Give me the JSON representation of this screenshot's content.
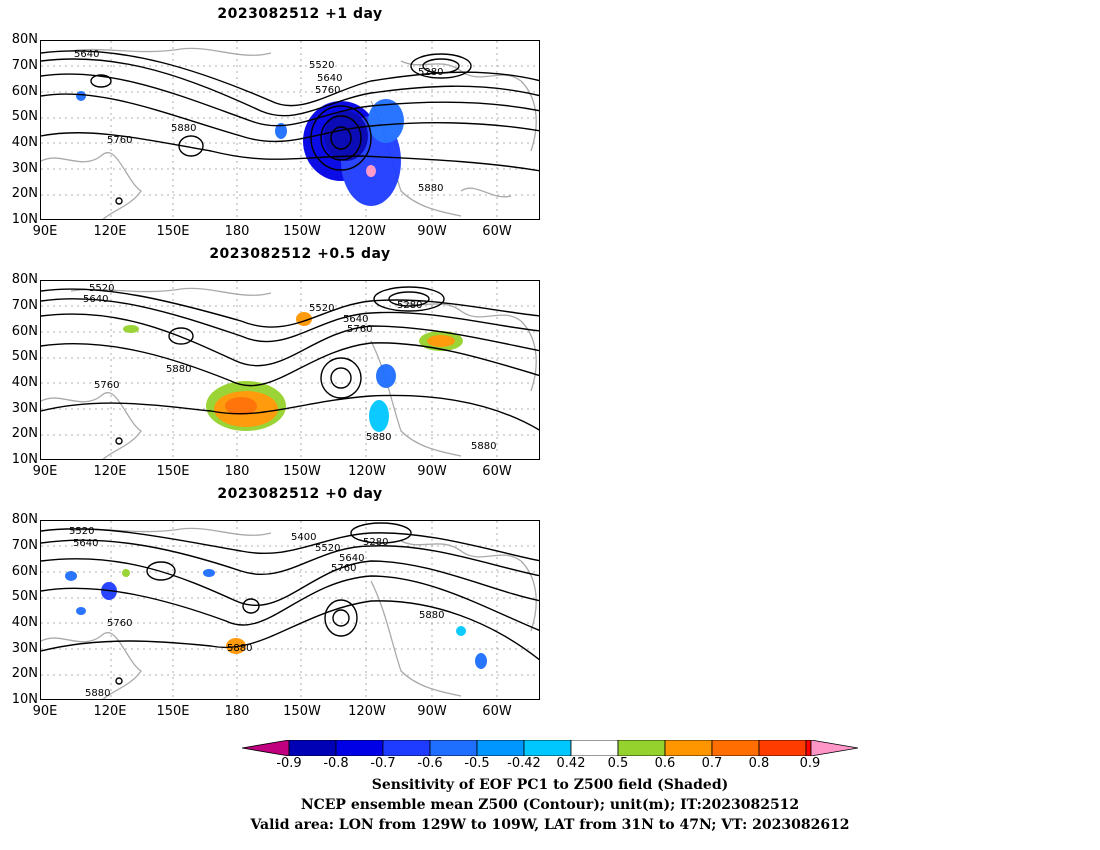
{
  "panels": [
    {
      "title": "2023082512  +1 day",
      "contour_labels": [
        "5640",
        "5520",
        "5640",
        "5760",
        "5280",
        "5880",
        "5760",
        "5880"
      ]
    },
    {
      "title": "2023082512  +0.5 day",
      "contour_labels": [
        "5520",
        "5640",
        "5520",
        "5280",
        "5640",
        "5760",
        "5880",
        "5760",
        "5880",
        "5880"
      ]
    },
    {
      "title": "2023082512  +0 day",
      "contour_labels": [
        "5520",
        "5640",
        "5400",
        "5280",
        "5520",
        "5640",
        "5760",
        "5760",
        "5880",
        "5880",
        "5880"
      ]
    }
  ],
  "lat_labels": [
    "80N",
    "70N",
    "60N",
    "50N",
    "40N",
    "30N",
    "20N",
    "10N"
  ],
  "lon_labels": [
    "90E",
    "120E",
    "150E",
    "180",
    "150W",
    "120W",
    "90W",
    "60W"
  ],
  "colorbar": {
    "ticks": [
      "-0.9",
      "-0.8",
      "-0.7",
      "-0.6",
      "-0.5",
      "-0.42",
      "0.42",
      "0.5",
      "0.6",
      "0.7",
      "0.8",
      "0.9"
    ],
    "colors": [
      "#c0007f",
      "#0000b4",
      "#0000e6",
      "#1e3cff",
      "#1e6eff",
      "#0096ff",
      "#00c8ff",
      "#ffffff",
      "#96d22d",
      "#ff9600",
      "#ff6e00",
      "#ff3c00",
      "#ff0000",
      "#ff96c8"
    ]
  },
  "captions": [
    "Sensitivity of EOF PC1 to Z500 field (Shaded)",
    "NCEP ensemble mean Z500 (Contour); unit(m); IT:2023082512",
    "Valid area: LON from 129W to 109W, LAT from 31N to 47N; VT: 2023082612"
  ]
}
